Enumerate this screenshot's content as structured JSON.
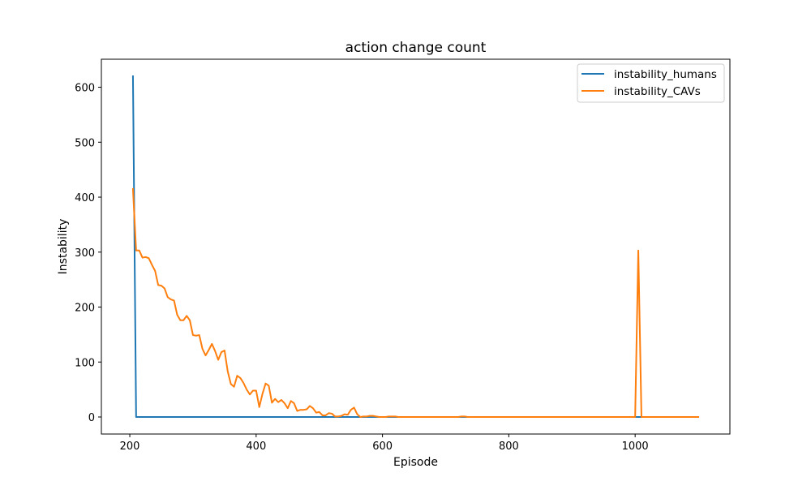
{
  "chart_data": {
    "type": "line",
    "title": "action change count",
    "xlabel": "Episode",
    "ylabel": "Instability",
    "xlim": [
      155,
      1150
    ],
    "ylim": [
      -31,
      651
    ],
    "xticks": [
      200,
      400,
      600,
      800,
      1000
    ],
    "yticks": [
      0,
      100,
      200,
      300,
      400,
      500,
      600
    ],
    "legend_position": "top-right",
    "grid": false,
    "series": [
      {
        "name": "instability_humans",
        "color": "#1f77b4",
        "x": [
          205,
          210,
          1000,
          1005,
          1010,
          1100
        ],
        "y": [
          620,
          0,
          0,
          0,
          0,
          0
        ]
      },
      {
        "name": "instability_CAVs",
        "color": "#ff7f0e",
        "x": [
          205,
          210,
          215,
          220,
          225,
          230,
          235,
          240,
          245,
          250,
          255,
          260,
          265,
          270,
          275,
          280,
          285,
          290,
          295,
          300,
          305,
          310,
          315,
          320,
          325,
          330,
          335,
          340,
          345,
          350,
          355,
          360,
          365,
          370,
          375,
          380,
          385,
          390,
          395,
          400,
          405,
          410,
          415,
          420,
          425,
          430,
          435,
          440,
          445,
          450,
          455,
          460,
          465,
          470,
          475,
          480,
          485,
          490,
          495,
          500,
          505,
          510,
          515,
          520,
          525,
          530,
          535,
          540,
          545,
          550,
          555,
          560,
          565,
          570,
          575,
          580,
          585,
          590,
          595,
          600,
          605,
          610,
          615,
          620,
          625,
          630,
          700,
          720,
          725,
          730,
          735,
          740,
          800,
          900,
          995,
          1000,
          1005,
          1010,
          1100
        ],
        "y": [
          415,
          303,
          303,
          290,
          291,
          289,
          277,
          266,
          240,
          239,
          234,
          218,
          214,
          212,
          186,
          176,
          176,
          184,
          176,
          149,
          148,
          149,
          124,
          112,
          122,
          133,
          120,
          104,
          118,
          121,
          83,
          60,
          55,
          75,
          71,
          62,
          50,
          41,
          48,
          48,
          18,
          42,
          61,
          57,
          26,
          33,
          27,
          31,
          25,
          16,
          29,
          25,
          11,
          13,
          13,
          14,
          20,
          16,
          8,
          9,
          3,
          3,
          7,
          6,
          1,
          1,
          2,
          5,
          4,
          13,
          17,
          5,
          0,
          1,
          1,
          2,
          2,
          1,
          0,
          0,
          0,
          1,
          1,
          1,
          0,
          0,
          0,
          0,
          1,
          1,
          0,
          0,
          0,
          0,
          0,
          0,
          303,
          0,
          0
        ]
      }
    ]
  }
}
